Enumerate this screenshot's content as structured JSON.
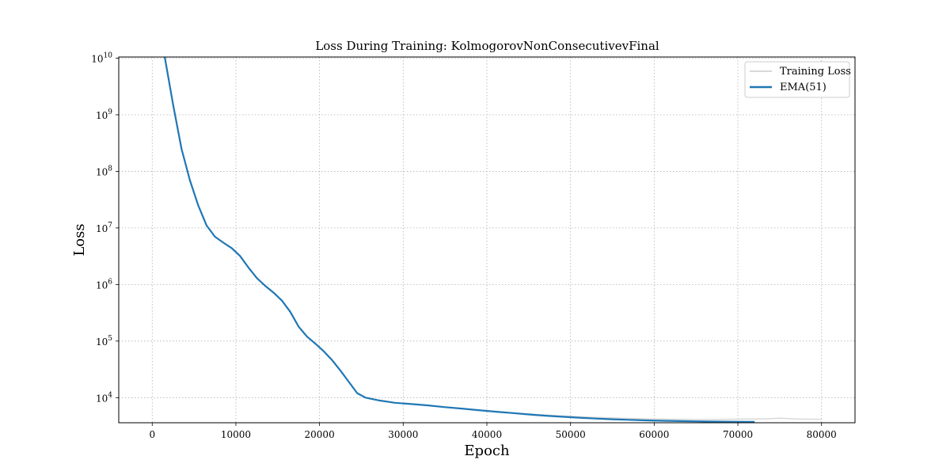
{
  "chart_data": {
    "type": "line",
    "title": "Loss During Training: KolmogorovNonConsecutivevFinal",
    "xlabel": "Epoch",
    "ylabel": "Loss",
    "yscale": "log",
    "xlim": [
      -4000,
      84000
    ],
    "ylim": [
      3600,
      10500000000
    ],
    "grid": true,
    "legend_position": "top-right",
    "xticks": [
      {
        "value": 0,
        "label": "0"
      },
      {
        "value": 10000,
        "label": "10000"
      },
      {
        "value": 20000,
        "label": "20000"
      },
      {
        "value": 30000,
        "label": "30000"
      },
      {
        "value": 40000,
        "label": "40000"
      },
      {
        "value": 50000,
        "label": "50000"
      },
      {
        "value": 60000,
        "label": "60000"
      },
      {
        "value": 70000,
        "label": "70000"
      },
      {
        "value": 80000,
        "label": "80000"
      }
    ],
    "yticks": [
      {
        "value": 10000,
        "base": "10",
        "exp": "4"
      },
      {
        "value": 100000,
        "base": "10",
        "exp": "5"
      },
      {
        "value": 1000000,
        "base": "10",
        "exp": "6"
      },
      {
        "value": 10000000,
        "base": "10",
        "exp": "7"
      },
      {
        "value": 100000000,
        "base": "10",
        "exp": "8"
      },
      {
        "value": 1000000000,
        "base": "10",
        "exp": "9"
      },
      {
        "value": 10000000000,
        "base": "10",
        "exp": "10"
      }
    ],
    "series": [
      {
        "name": "Training Loss",
        "color": "#d9d9d9",
        "x": [
          1500,
          2500,
          3500,
          4500,
          5500,
          6500,
          7500,
          8500,
          9500,
          10500,
          11500,
          12500,
          13500,
          14500,
          15500,
          16500,
          17500,
          18500,
          19500,
          20500,
          21500,
          22500,
          23500,
          24500,
          25500,
          27000,
          29000,
          31000,
          33000,
          35000,
          37000,
          39000,
          41000,
          43000,
          45000,
          47000,
          49000,
          51000,
          53000,
          55000,
          57000,
          59000,
          61000,
          63000,
          65000,
          67000,
          69000,
          71000,
          72000,
          73000,
          74000,
          75000,
          76000,
          77000,
          78000,
          79000,
          80000
        ],
        "y": [
          10500000000,
          1500000000,
          250000000,
          70000000,
          25000000,
          11000000,
          7000000,
          5500000,
          4400000,
          3200000,
          2000000,
          1300000,
          950000,
          720000,
          520000,
          330000,
          180000,
          120000,
          90000,
          66000,
          46000,
          30000,
          19000,
          12000,
          10000,
          9000,
          8100,
          7700,
          7300,
          6800,
          6400,
          6000,
          5700,
          5400,
          5150,
          4950,
          4750,
          4600,
          4480,
          4380,
          4300,
          4230,
          4180,
          4150,
          4130,
          4140,
          4150,
          4180,
          4200,
          4220,
          4250,
          4320,
          4250,
          4200,
          4180,
          4160,
          4150
        ]
      },
      {
        "name": "EMA(51)",
        "color": "#1f77b4",
        "x": [
          1500,
          2500,
          3500,
          4500,
          5500,
          6500,
          7500,
          8500,
          9500,
          10500,
          11500,
          12500,
          13500,
          14500,
          15500,
          16500,
          17500,
          18500,
          19500,
          20500,
          21500,
          22500,
          23500,
          24500,
          25500,
          27000,
          29000,
          31000,
          33000,
          35000,
          37000,
          39000,
          41000,
          43000,
          45000,
          47000,
          49000,
          51000,
          53000,
          55000,
          57000,
          59000,
          61000,
          63000,
          65000,
          67000,
          69000,
          71000,
          72000
        ],
        "y": [
          10500000000,
          1500000000,
          250000000,
          70000000,
          25000000,
          11000000,
          7000000,
          5500000,
          4400000,
          3200000,
          2000000,
          1300000,
          950000,
          720000,
          520000,
          330000,
          180000,
          120000,
          90000,
          66000,
          46000,
          30000,
          19000,
          12000,
          10000,
          9000,
          8100,
          7700,
          7300,
          6800,
          6400,
          6000,
          5650,
          5350,
          5050,
          4800,
          4600,
          4420,
          4270,
          4150,
          4050,
          3970,
          3900,
          3850,
          3810,
          3780,
          3760,
          3740,
          3730
        ]
      }
    ]
  }
}
